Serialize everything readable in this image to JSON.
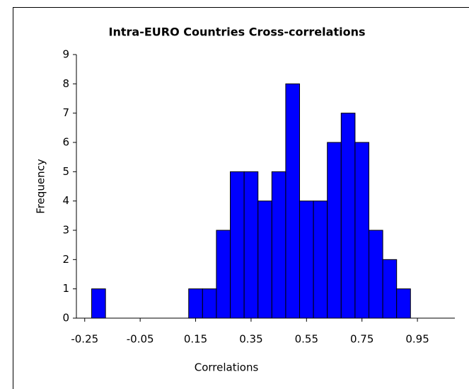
{
  "chart_data": {
    "type": "histogram",
    "title": "Intra-EURO Countries Cross-correlations",
    "x_label": "Correlations",
    "y_label": "Frequency",
    "bins": [
      -0.225,
      -0.175,
      -0.125,
      -0.075,
      -0.025,
      0.025,
      0.075,
      0.125,
      0.175,
      0.225,
      0.275,
      0.325,
      0.375,
      0.425,
      0.475,
      0.525,
      0.575,
      0.625,
      0.675,
      0.725,
      0.775,
      0.825,
      0.875,
      0.925
    ],
    "values": [
      1,
      0,
      0,
      0,
      0,
      0,
      0,
      1,
      1,
      3,
      5,
      5,
      4,
      5,
      8,
      4,
      4,
      6,
      7,
      6,
      3,
      2,
      1
    ],
    "color": "#0000ff",
    "xlim": [
      -0.28,
      1.085
    ],
    "xticks": [
      -0.25,
      -0.05,
      0.15,
      0.35,
      0.55,
      0.75,
      0.95
    ],
    "ylim": [
      0,
      9
    ],
    "yticks": [
      0,
      1,
      2,
      3,
      4,
      5,
      6,
      7,
      8,
      9
    ],
    "grid": false
  }
}
